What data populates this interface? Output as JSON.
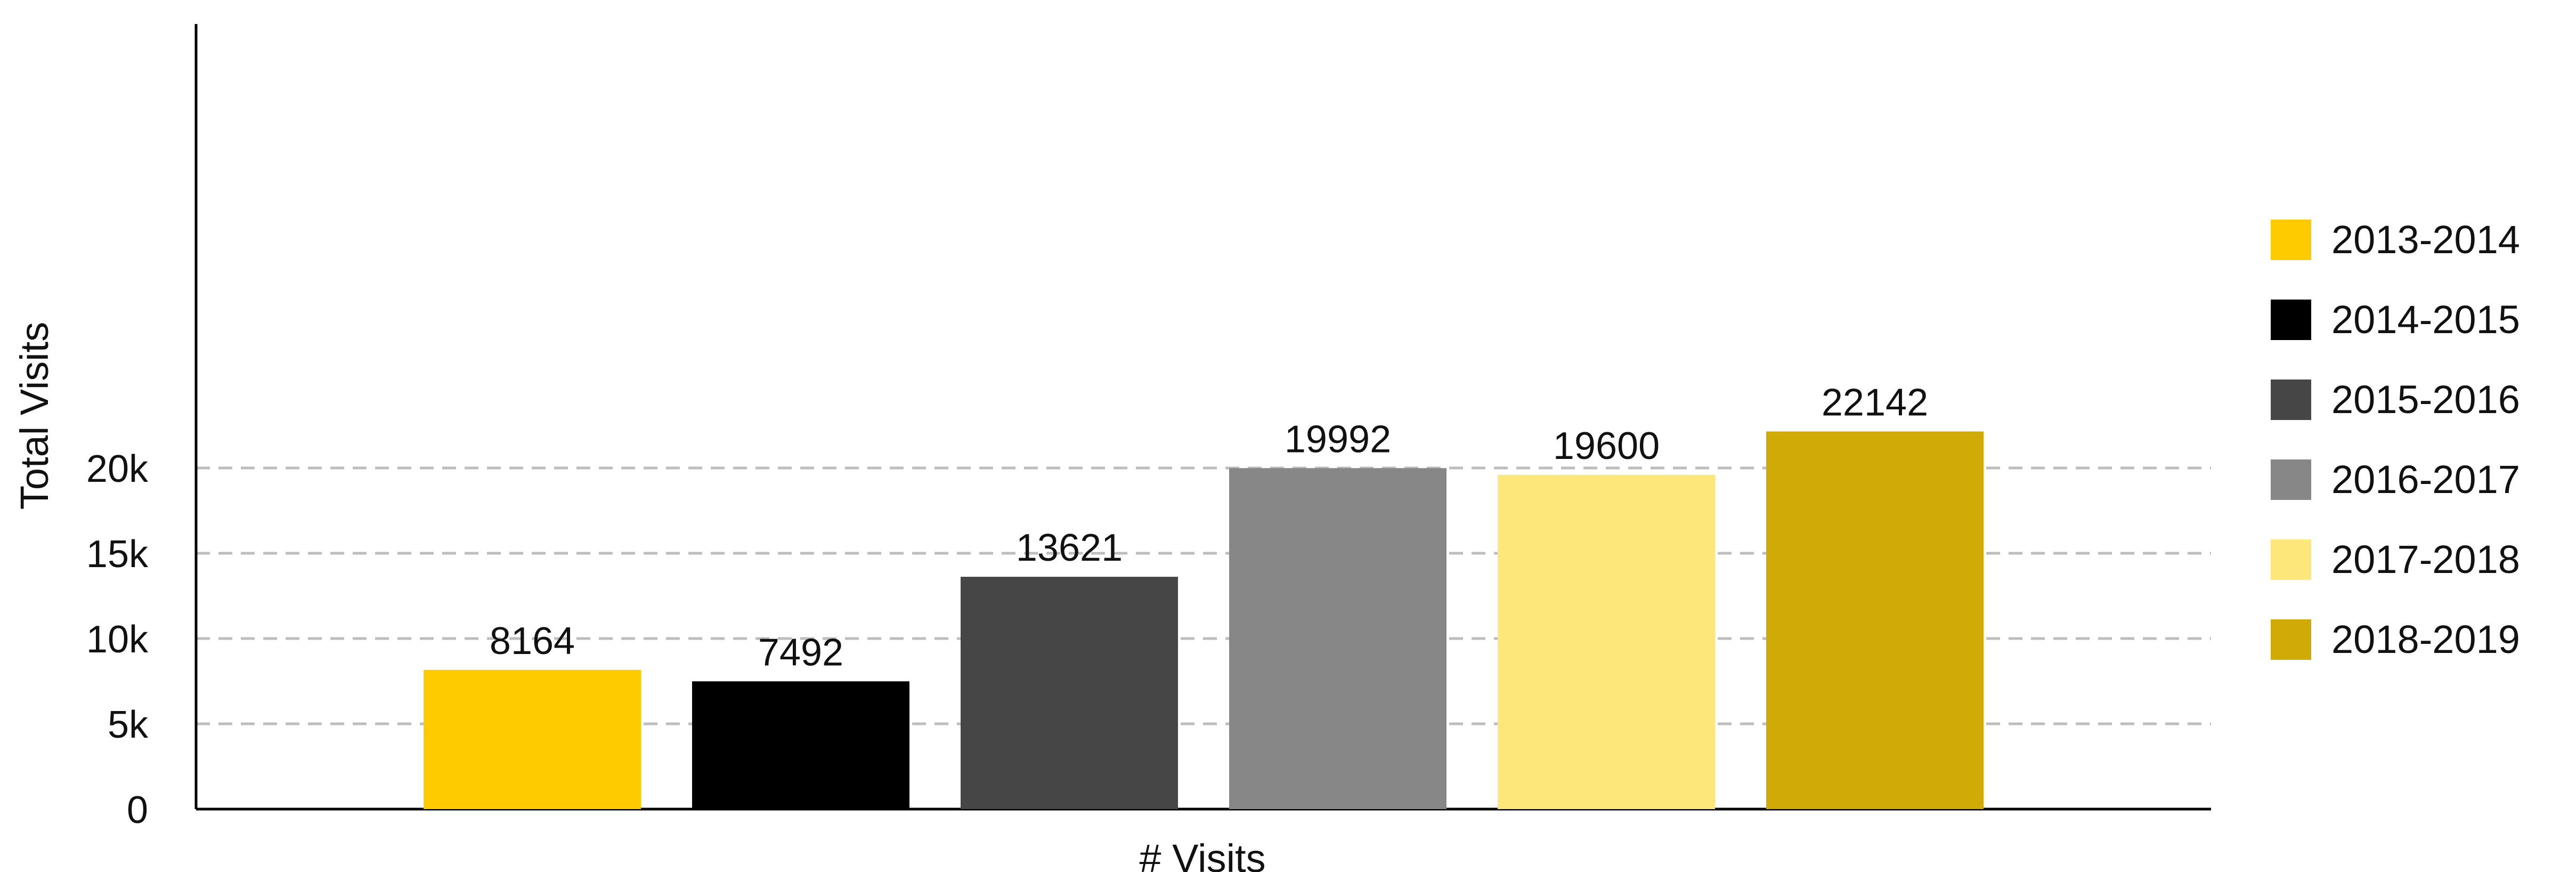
{
  "chart_data": {
    "type": "bar",
    "categories": [
      "2013-2014",
      "2014-2015",
      "2015-2016",
      "2016-2017",
      "2017-2018",
      "2018-2019"
    ],
    "values": [
      8164,
      7492,
      13621,
      19992,
      19600,
      22142
    ],
    "colors": [
      "#FECB00",
      "#000000",
      "#464646",
      "#878787",
      "#FDE67A",
      "#D0AB08"
    ],
    "xlabel": "# Visits",
    "ylabel": "Total Visits",
    "ylim": [
      0,
      23000
    ],
    "yticks": [
      0,
      5000,
      10000,
      15000,
      20000
    ],
    "ytick_labels": [
      "0",
      "5k",
      "10k",
      "15k",
      "20k"
    ],
    "grid": "horizontal dashed",
    "legend": {
      "position": "right",
      "entries": [
        "2013-2014",
        "2014-2015",
        "2015-2016",
        "2016-2017",
        "2017-2018",
        "2018-2019"
      ]
    },
    "data_labels": [
      "8164",
      "7492",
      "13621",
      "19992",
      "19600",
      "22142"
    ]
  }
}
